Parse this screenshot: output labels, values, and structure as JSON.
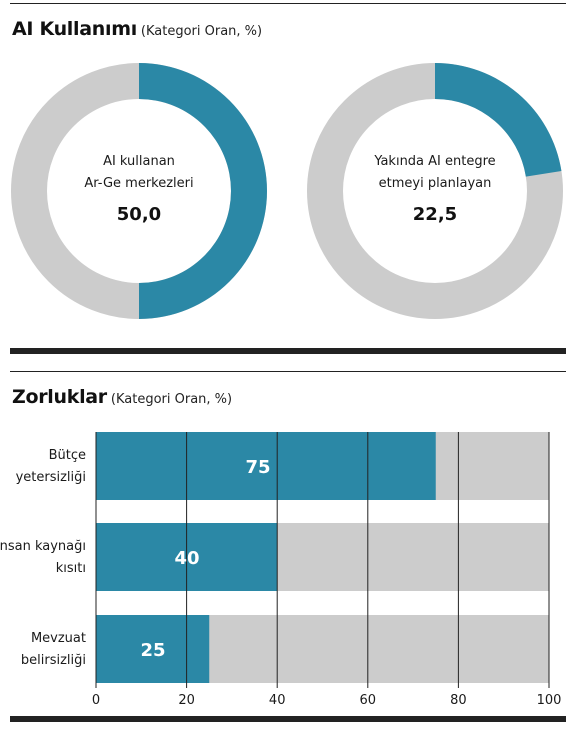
{
  "usage": {
    "title": "AI Kullanımı",
    "subtitle": "(Kategori Oran, %)"
  },
  "challenges": {
    "title": "Zorluklar",
    "subtitle": "(Kategori Oran, %)"
  },
  "colors": {
    "accent": "#2b88a6",
    "track": "#cccccc",
    "rule": "#222222"
  },
  "chart_data": [
    {
      "type": "pie",
      "style": "donut",
      "slices": [
        {
          "label_lines": [
            "AI kullanan",
            "Ar-Ge merkezleri"
          ],
          "value": 50.0,
          "value_label": "50,0"
        }
      ],
      "total": 100
    },
    {
      "type": "pie",
      "style": "donut",
      "slices": [
        {
          "label_lines": [
            "Yakında AI entegre",
            "etmeyi planlayan"
          ],
          "value": 22.5,
          "value_label": "22,5"
        }
      ],
      "total": 100
    },
    {
      "type": "bar",
      "orientation": "horizontal",
      "categories": [
        [
          "Bütçe",
          "yetersizliği"
        ],
        [
          "İnsan kaynağı",
          "kısıtı"
        ],
        [
          "Mevzuat",
          "belirsizliği"
        ]
      ],
      "values": [
        75,
        40,
        25
      ],
      "xlim": [
        0,
        100
      ],
      "xticks": [
        0,
        20,
        40,
        60,
        80,
        100
      ],
      "grid": true
    }
  ]
}
